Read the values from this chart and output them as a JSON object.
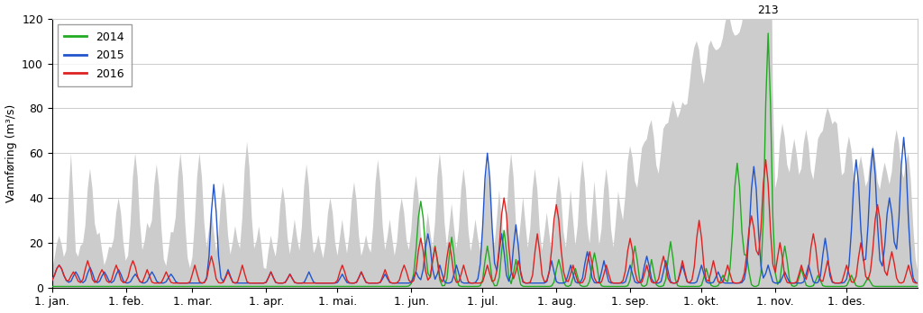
{
  "ylabel": "Vannføring (m³/s)",
  "ylim": [
    0,
    120
  ],
  "yticks": [
    0,
    20,
    40,
    60,
    80,
    100,
    120
  ],
  "legend_labels": [
    "2014",
    "2015",
    "2016"
  ],
  "legend_colors": [
    "#22aa22",
    "#2255cc",
    "#dd2222"
  ],
  "gray_fill_color": "#cccccc",
  "gray_line_color": "#aaaaaa",
  "background_color": "#ffffff",
  "annotation_text": "213",
  "x_tick_labels": [
    "1. jan.",
    "1. feb.",
    "1. mar.",
    "1. apr.",
    "1. mai.",
    "1. jun.",
    "1. jul.",
    "1. aug.",
    "1. sep.",
    "1. okt.",
    "1. nov.",
    "1. des."
  ],
  "x_tick_positions": [
    0,
    31,
    59,
    90,
    120,
    151,
    181,
    212,
    243,
    273,
    304,
    334
  ],
  "n_days": 365,
  "grid_color": "#cccccc",
  "line_width": 1.0
}
